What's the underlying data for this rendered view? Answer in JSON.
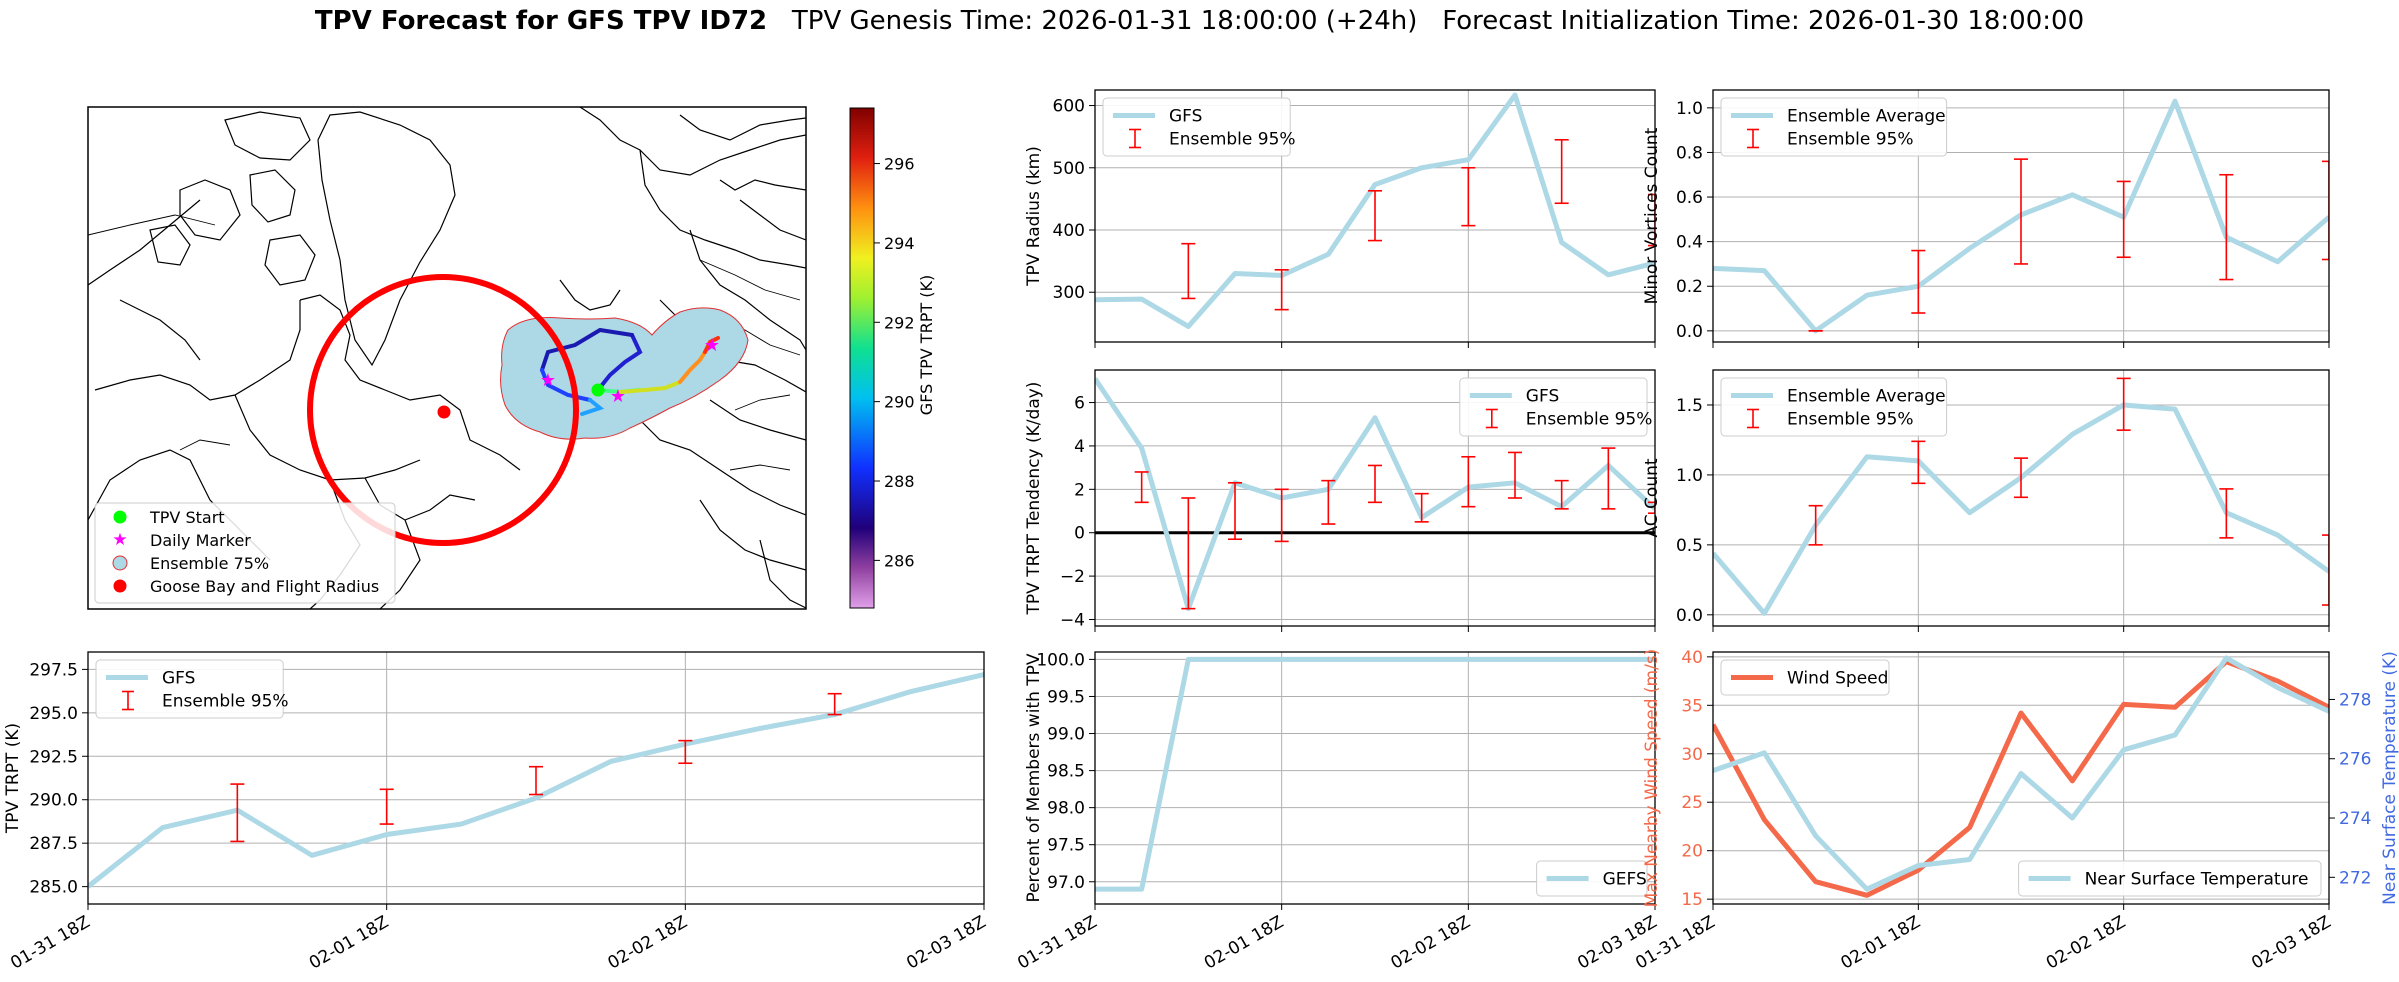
{
  "title": {
    "bold": "TPV Forecast for GFS TPV ID72",
    "genesis": "TPV Genesis Time: 2026-01-31 18:00:00 (+24h)",
    "init": "Forecast Initialization Time: 2026-01-30 18:00:00"
  },
  "colors": {
    "gfs_line": "#add8e6",
    "errorbar": "#ff0000",
    "wind": "#f4694a",
    "temp_axis": "#4169e1",
    "ensemble_fill": "#add8e6",
    "flight_circle": "#ff0000"
  },
  "x_ticks": [
    "01-31 18Z",
    "02-01 18Z",
    "02-02 18Z",
    "02-03 18Z"
  ],
  "map": {
    "legend": [
      "TPV Start",
      "Daily Marker",
      "Ensemble 75%",
      "Goose Bay and Flight Radius"
    ],
    "colorbar": {
      "label": "GFS TPV TRPT (K)",
      "ticks": [
        "286",
        "288",
        "290",
        "292",
        "294",
        "296"
      ]
    }
  },
  "chart_data": [
    {
      "id": "trpt",
      "type": "line",
      "ylabel": "TPV TRPT (K)",
      "ylim": [
        284.0,
        298.5
      ],
      "yticks": [
        285.0,
        287.5,
        290.0,
        292.5,
        295.0,
        297.5
      ],
      "ytick_labels": [
        "285.0",
        "287.5",
        "290.0",
        "292.5",
        "295.0",
        "297.5"
      ],
      "x": [
        0,
        1,
        2,
        3,
        4,
        5,
        6,
        7,
        8,
        9,
        10,
        11,
        12
      ],
      "series": [
        {
          "name": "GFS",
          "values": [
            285.0,
            288.4,
            289.4,
            286.8,
            288.0,
            288.6,
            290.1,
            292.2,
            293.2,
            294.1,
            294.9,
            296.2,
            297.2
          ]
        }
      ],
      "errorbars": {
        "name": "Ensemble 95%",
        "x": [
          2,
          4,
          6,
          8,
          10
        ],
        "low": [
          287.6,
          288.6,
          290.3,
          292.1,
          294.9
        ],
        "high": [
          290.9,
          290.6,
          291.9,
          293.4,
          296.1
        ]
      },
      "legend": [
        "GFS",
        "Ensemble 95%"
      ]
    },
    {
      "id": "radius",
      "type": "line",
      "ylabel": "TPV Radius (km)",
      "ylim": [
        220,
        625
      ],
      "yticks": [
        300,
        400,
        500,
        600
      ],
      "ytick_labels": [
        "300",
        "400",
        "500",
        "600"
      ],
      "x": [
        0,
        1,
        2,
        3,
        4,
        5,
        6,
        7,
        8,
        9,
        10,
        11,
        12
      ],
      "series": [
        {
          "name": "GFS",
          "values": [
            288,
            289,
            245,
            330,
            327,
            361,
            473,
            500,
            513,
            617,
            380,
            328,
            347
          ]
        }
      ],
      "errorbars": {
        "name": "Ensemble 95%",
        "x": [
          2,
          4,
          6,
          8,
          10,
          12
        ],
        "low": [
          290,
          272,
          383,
          407,
          443,
          375
        ],
        "high": [
          378,
          336,
          463,
          500,
          545,
          457
        ]
      },
      "legend": [
        "GFS",
        "Ensemble 95%"
      ]
    },
    {
      "id": "tendency",
      "type": "line",
      "ylabel": "TPV TRPT Tendency (K/day)",
      "ylim": [
        -4.3,
        7.5
      ],
      "yticks": [
        -4,
        -2,
        0,
        2,
        4,
        6
      ],
      "ytick_labels": [
        "−4",
        "−2",
        "0",
        "2",
        "4",
        "6"
      ],
      "x": [
        0,
        1,
        2,
        3,
        4,
        5,
        6,
        7,
        8,
        9,
        10,
        11,
        12
      ],
      "series": [
        {
          "name": "GFS",
          "values": [
            7.1,
            3.9,
            -3.5,
            2.3,
            1.6,
            2.0,
            5.3,
            0.7,
            2.1,
            2.3,
            1.2,
            3.1,
            1.1
          ]
        }
      ],
      "errorbars": {
        "name": "Ensemble 95%",
        "x": [
          1,
          2,
          3,
          4,
          5,
          6,
          7,
          8,
          9,
          10,
          11,
          12
        ],
        "low": [
          1.4,
          -3.5,
          -0.3,
          -0.4,
          0.4,
          1.4,
          0.5,
          1.2,
          1.6,
          1.1,
          1.1,
          0.9
        ],
        "high": [
          2.8,
          1.6,
          2.3,
          2.0,
          2.4,
          3.1,
          1.8,
          3.5,
          3.7,
          2.4,
          3.9,
          1.4
        ]
      },
      "hline": 0,
      "legend": [
        "GFS",
        "Ensemble 95%"
      ]
    },
    {
      "id": "members",
      "type": "line",
      "ylabel": "Percent of Members with TPV",
      "ylim": [
        96.7,
        100.1
      ],
      "yticks": [
        97.0,
        97.5,
        98.0,
        98.5,
        99.0,
        99.5,
        100.0
      ],
      "ytick_labels": [
        "97.0",
        "97.5",
        "98.0",
        "98.5",
        "99.0",
        "99.5",
        "100.0"
      ],
      "x": [
        0,
        1,
        2,
        3,
        4,
        5,
        6,
        7,
        8,
        9,
        10,
        11,
        12
      ],
      "series": [
        {
          "name": "GEFS",
          "values": [
            96.9,
            96.9,
            100.0,
            100.0,
            100.0,
            100.0,
            100.0,
            100.0,
            100.0,
            100.0,
            100.0,
            100.0,
            100.0
          ]
        }
      ],
      "legend": [
        "GEFS"
      ]
    },
    {
      "id": "minor",
      "type": "line",
      "ylabel": "Minor Vortices Count",
      "ylim": [
        -0.05,
        1.08
      ],
      "yticks": [
        0.0,
        0.2,
        0.4,
        0.6,
        0.8,
        1.0
      ],
      "ytick_labels": [
        "0.0",
        "0.2",
        "0.4",
        "0.6",
        "0.8",
        "1.0"
      ],
      "x": [
        0,
        1,
        2,
        3,
        4,
        5,
        6,
        7,
        8,
        9,
        10,
        11,
        12
      ],
      "series": [
        {
          "name": "Ensemble Average",
          "values": [
            0.28,
            0.27,
            0.0,
            0.16,
            0.2,
            0.37,
            0.52,
            0.61,
            0.51,
            1.03,
            0.42,
            0.31,
            0.51
          ]
        }
      ],
      "errorbars": {
        "name": "Ensemble 95%",
        "x": [
          2,
          4,
          6,
          8,
          10,
          12
        ],
        "low": [
          0.0,
          0.08,
          0.3,
          0.33,
          0.23,
          0.32
        ],
        "high": [
          0.0,
          0.36,
          0.77,
          0.67,
          0.7,
          0.76
        ]
      },
      "legend": [
        "Ensemble Average",
        "Ensemble 95%"
      ]
    },
    {
      "id": "ac",
      "type": "line",
      "ylabel": "AC Count",
      "ylim": [
        -0.08,
        1.75
      ],
      "yticks": [
        0.0,
        0.5,
        1.0,
        1.5
      ],
      "ytick_labels": [
        "0.0",
        "0.5",
        "1.0",
        "1.5"
      ],
      "x": [
        0,
        1,
        2,
        3,
        4,
        5,
        6,
        7,
        8,
        9,
        10,
        11,
        12
      ],
      "series": [
        {
          "name": "Ensemble Average",
          "values": [
            0.44,
            0.01,
            0.64,
            1.13,
            1.1,
            0.73,
            0.98,
            1.29,
            1.5,
            1.47,
            0.73,
            0.57,
            0.31
          ]
        }
      ],
      "errorbars": {
        "name": "Ensemble 95%",
        "x": [
          2,
          4,
          6,
          8,
          10,
          12
        ],
        "low": [
          0.5,
          0.94,
          0.84,
          1.32,
          0.55,
          0.07
        ],
        "high": [
          0.78,
          1.24,
          1.12,
          1.69,
          0.9,
          0.57
        ]
      },
      "legend": [
        "Ensemble Average",
        "Ensemble 95%"
      ]
    },
    {
      "id": "wind_temp",
      "type": "line",
      "ylabel": "Max Nearby Wind Speed (m/s)",
      "ylim": [
        14.5,
        40.5
      ],
      "yticks": [
        15,
        20,
        25,
        30,
        35,
        40
      ],
      "ytick_labels": [
        "15",
        "20",
        "25",
        "30",
        "35",
        "40"
      ],
      "x": [
        0,
        1,
        2,
        3,
        4,
        5,
        6,
        7,
        8,
        9,
        10,
        11,
        12
      ],
      "series": [
        {
          "name": "Wind Speed",
          "axis": "left",
          "values": [
            33.0,
            23.2,
            16.8,
            15.4,
            18.0,
            22.4,
            34.2,
            27.2,
            35.1,
            34.8,
            39.5,
            37.5,
            34.8
          ]
        },
        {
          "name": "Near Surface Temperature",
          "axis": "right",
          "values": [
            275.6,
            276.2,
            273.4,
            271.6,
            272.4,
            272.6,
            275.5,
            274.0,
            276.3,
            276.8,
            279.4,
            278.4,
            277.6
          ]
        }
      ],
      "y2label": "Near Surface Temperature (K)",
      "y2lim": [
        271.1,
        279.6
      ],
      "y2ticks": [
        272,
        274,
        276,
        278
      ],
      "y2tick_labels": [
        "272",
        "274",
        "276",
        "278"
      ],
      "legend": [
        "Wind Speed",
        "Near Surface Temperature"
      ]
    }
  ]
}
